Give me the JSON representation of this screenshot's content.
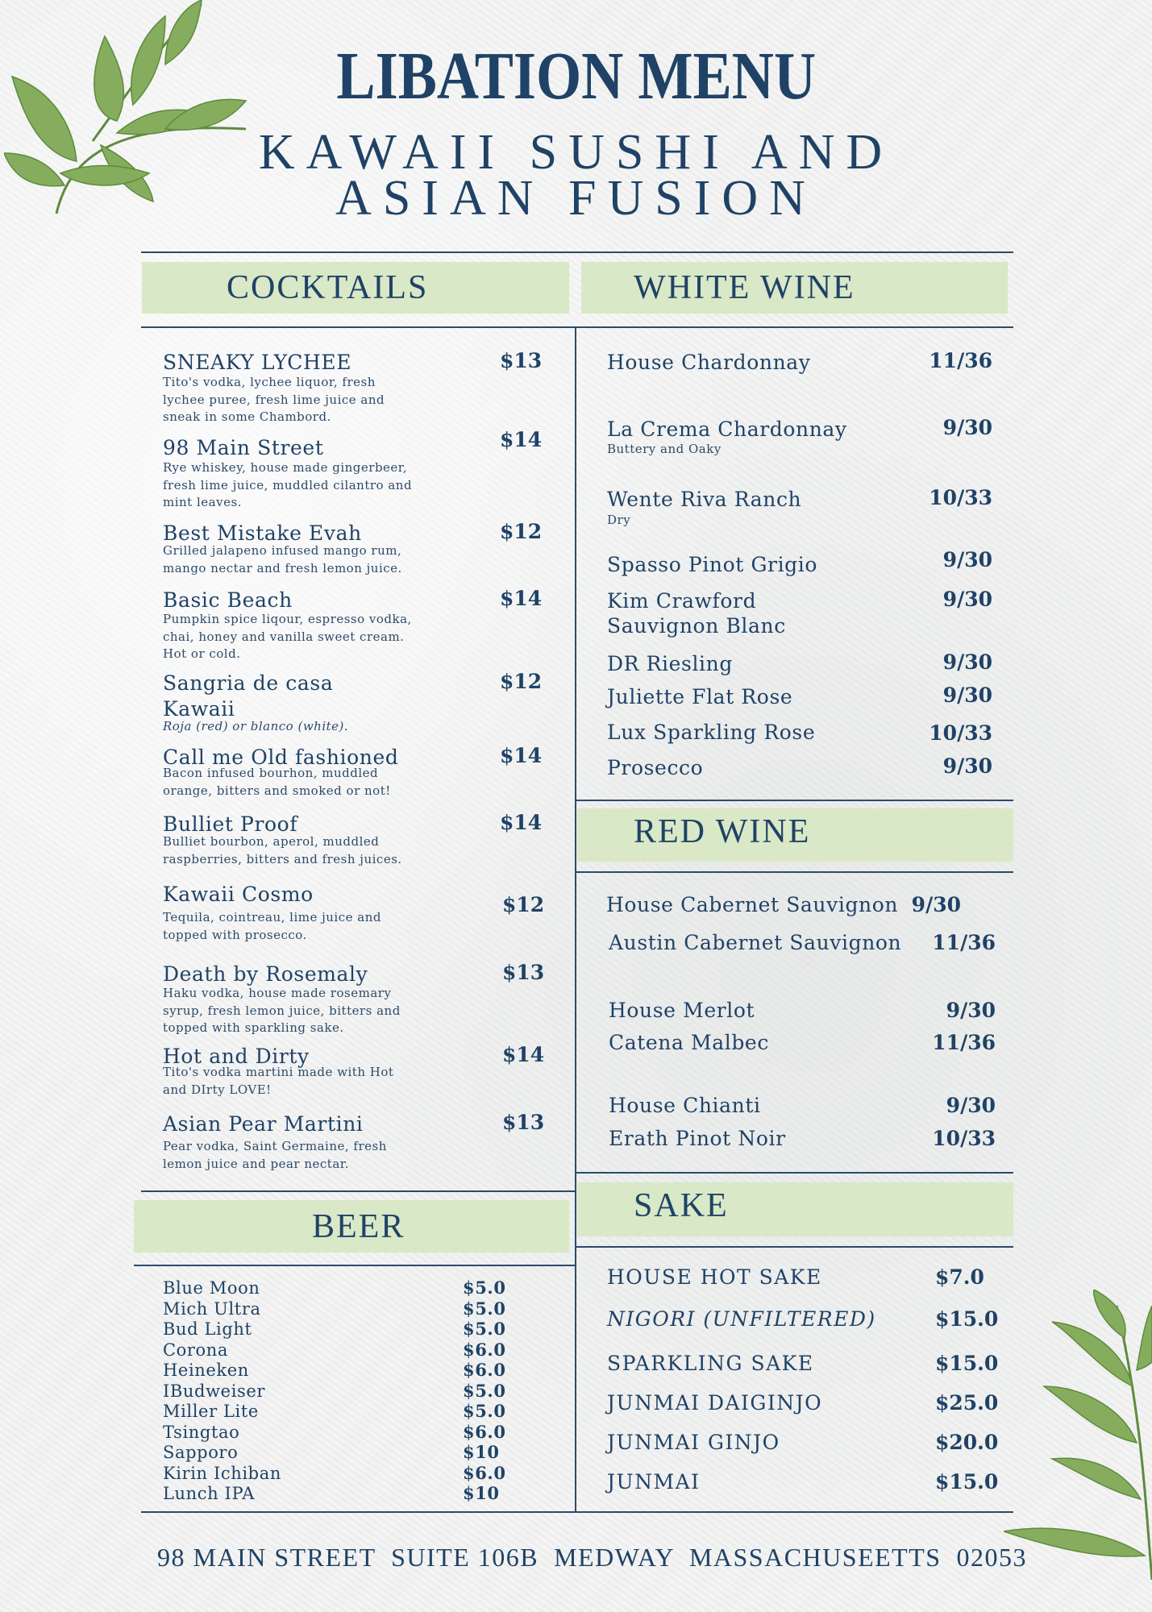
{
  "header": {
    "title": "LIBATION MENU",
    "subtitle_line1": "KAWAII SUSHI AND",
    "subtitle_line2": "ASIAN FUSION"
  },
  "colors": {
    "text": "#1f4266",
    "header_band": "#d9e8c6",
    "leaf": "#86ad5e"
  },
  "cocktails": {
    "heading": "COCKTAILS",
    "items": [
      {
        "name": "SNEAKY LYCHEE",
        "price": "$13",
        "description": "Tito's vodka, lychee liquor, fresh\nlychee puree, fresh lime juice and\nsneak in some Chambord."
      },
      {
        "name": "98 Main Street",
        "price": "$14",
        "description": "Rye whiskey,  house made gingerbeer,\nfresh lime juice, muddled cilantro and\nmint leaves."
      },
      {
        "name": "Best Mistake Evah",
        "price": "$12",
        "description": "Grilled jalapeno infused mango rum,\nmango nectar and fresh lemon juice."
      },
      {
        "name": "Basic Beach",
        "price": "$14",
        "description": "Pumpkin spice liqour, espresso vodka,\nchai, honey  and vanilla sweet cream.\nHot or cold."
      },
      {
        "name": "Sangria de casa\nKawaii",
        "price": "$12",
        "description": "Roja (red) or blanco (white)."
      },
      {
        "name": "Call me Old fashioned",
        "price": "$14",
        "description": "Bacon infused bourhon, muddled\norange, bitters and smoked or not!"
      },
      {
        "name": "Bulliet Proof",
        "price": "$14",
        "description": "Bulliet bourbon, aperol, muddled\nraspberries, bitters and fresh juices."
      },
      {
        "name": "Kawaii Cosmo",
        "price": "$12",
        "description": "Tequila, cointreau, lime juice and\ntopped with prosecco."
      },
      {
        "name": "Death by Rosemaly",
        "price": "$13",
        "description": "Haku vodka, house made rosemary\nsyrup, fresh lemon juice, bitters and\ntopped with sparkling sake."
      },
      {
        "name": "Hot and Dirty",
        "price": "$14",
        "description": "Tito's vodka martini made with Hot\nand DIrty LOVE!"
      },
      {
        "name": "Asian Pear Martini",
        "price": "$13",
        "description": "Pear vodka, Saint Germaine, fresh\nlemon juice and pear nectar."
      }
    ]
  },
  "beer": {
    "heading": "BEER",
    "items": [
      {
        "name": "Blue Moon",
        "price": "$5.0"
      },
      {
        "name": "Mich Ultra",
        "price": "$5.0"
      },
      {
        "name": "Bud Light",
        "price": "$5.0"
      },
      {
        "name": "Corona",
        "price": "$6.0"
      },
      {
        "name": "Heineken",
        "price": "$6.0"
      },
      {
        "name": "IBudweiser",
        "price": "$5.0"
      },
      {
        "name": "Miller Lite",
        "price": "$5.0"
      },
      {
        "name": "Tsingtao",
        "price": "$6.0"
      },
      {
        "name": "Sapporo",
        "price": "$10"
      },
      {
        "name": "Kirin Ichiban",
        "price": "$6.0"
      },
      {
        "name": "Lunch IPA",
        "price": "$10"
      }
    ]
  },
  "white_wine": {
    "heading": "WHITE WINE",
    "items": [
      {
        "name": "House Chardonnay",
        "price": "11/36"
      },
      {
        "name": "La Crema Chardonnay",
        "price": "9/30",
        "note": "Buttery and Oaky"
      },
      {
        "name": "Wente Riva Ranch",
        "price": "10/33",
        "note": "Dry"
      },
      {
        "name": "Spasso Pinot Grigio",
        "price": "9/30"
      },
      {
        "name": "Kim Crawford\nSauvignon Blanc",
        "price": "9/30"
      },
      {
        "name": "DR Riesling",
        "price": "9/30"
      },
      {
        "name": "Juliette Flat Rose",
        "price": "9/30"
      },
      {
        "name": "Lux Sparkling Rose",
        "price": "10/33"
      },
      {
        "name": "Prosecco",
        "price": "9/30"
      }
    ]
  },
  "red_wine": {
    "heading": "RED WINE",
    "items": [
      {
        "name": "House Cabernet Sauvignon",
        "price": "9/30"
      },
      {
        "name": "Austin Cabernet Sauvignon",
        "price": "11/36"
      },
      {
        "name": "House Merlot",
        "price": "9/30"
      },
      {
        "name": "Catena Malbec",
        "price": "11/36"
      },
      {
        "name": "House Chianti",
        "price": "9/30"
      },
      {
        "name": "Erath Pinot Noir",
        "price": "10/33"
      }
    ]
  },
  "sake": {
    "heading": "SAKE",
    "items": [
      {
        "name": "HOUSE HOT SAKE",
        "price": "$7.0"
      },
      {
        "name": "NIGORI  (UNFILTERED)",
        "price": "$15.0"
      },
      {
        "name": "SPARKLING SAKE",
        "price": "$15.0"
      },
      {
        "name": "JUNMAI DAIGINJO",
        "price": "$25.0"
      },
      {
        "name": "JUNMAI GINJO",
        "price": "$20.0"
      },
      {
        "name": "JUNMAI",
        "price": "$15.0"
      }
    ]
  },
  "footer": {
    "address": "98 MAIN STREET  SUITE 106B  MEDWAY  MASSACHUSEETTS  02053"
  }
}
